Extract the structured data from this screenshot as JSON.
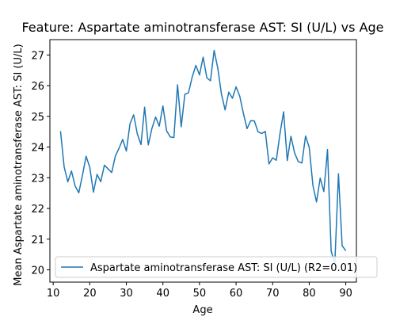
{
  "chart_data": {
    "type": "line",
    "title": "Feature: Aspartate aminotransferase AST: SI (U/L) vs Age",
    "xlabel": "Age",
    "ylabel": "Mean Aspartate aminotransferase AST: SI (U/L)",
    "xlim": [
      9.1,
      92.9
    ],
    "ylim": [
      19.6,
      27.5
    ],
    "xticks": [
      10,
      20,
      30,
      40,
      50,
      60,
      70,
      80,
      90
    ],
    "yticks": [
      20,
      21,
      22,
      23,
      24,
      25,
      26,
      27
    ],
    "grid": false,
    "legend_position": "lower-right",
    "line_color": "#1f77b4",
    "series": [
      {
        "name": "Aspartate aminotransferase AST: SI (U/L) (R2=0.01)",
        "x": [
          12,
          13,
          14,
          15,
          16,
          17,
          18,
          19,
          20,
          21,
          22,
          23,
          24,
          25,
          26,
          27,
          28,
          29,
          30,
          31,
          32,
          33,
          34,
          35,
          36,
          37,
          38,
          39,
          40,
          41,
          42,
          43,
          44,
          45,
          46,
          47,
          48,
          49,
          50,
          51,
          52,
          53,
          54,
          55,
          56,
          57,
          58,
          59,
          60,
          61,
          62,
          63,
          64,
          65,
          66,
          67,
          68,
          69,
          70,
          71,
          72,
          73,
          74,
          75,
          76,
          77,
          78,
          79,
          80,
          81,
          82,
          83,
          84,
          85,
          86,
          87,
          88,
          89,
          90
        ],
        "y": [
          24.52,
          23.35,
          22.87,
          23.22,
          22.73,
          22.51,
          23.08,
          23.7,
          23.34,
          22.53,
          23.11,
          22.87,
          23.41,
          23.29,
          23.17,
          23.71,
          23.96,
          24.25,
          23.87,
          24.76,
          25.05,
          24.43,
          24.08,
          25.3,
          24.07,
          24.61,
          24.98,
          24.68,
          25.34,
          24.53,
          24.33,
          24.31,
          26.03,
          24.66,
          25.72,
          25.77,
          26.28,
          26.66,
          26.35,
          26.93,
          26.26,
          26.16,
          27.15,
          26.57,
          25.73,
          25.21,
          25.79,
          25.59,
          25.96,
          25.66,
          25.1,
          24.6,
          24.86,
          24.85,
          24.5,
          24.44,
          24.51,
          23.45,
          23.65,
          23.57,
          24.43,
          25.15,
          23.56,
          24.35,
          23.81,
          23.53,
          23.48,
          24.36,
          23.99,
          22.76,
          22.21,
          22.99,
          22.55,
          23.92,
          20.61,
          20.2,
          23.13,
          20.79,
          20.62
        ]
      }
    ]
  }
}
